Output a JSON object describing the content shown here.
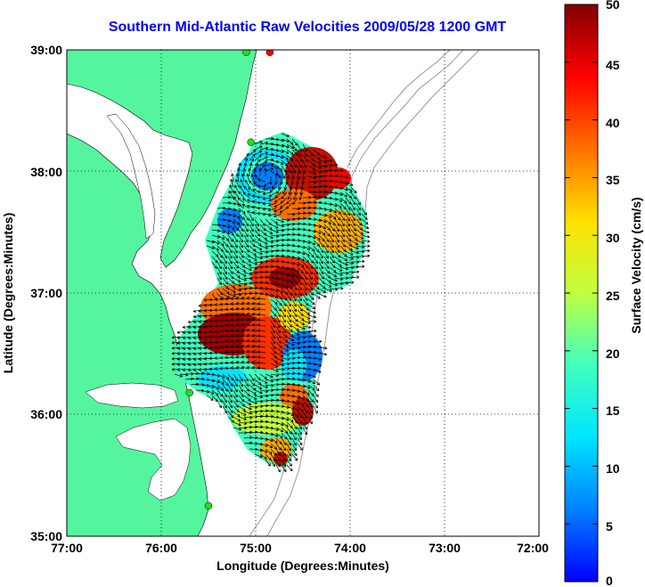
{
  "title": "Southern Mid-Atlantic Raw Velocities 2009/05/28 1200 GMT",
  "x_axis": {
    "label": "Longitude (Degrees:Minutes)",
    "ticks": [
      "77:00",
      "76:00",
      "75:00",
      "74:00",
      "73:00",
      "72:00"
    ]
  },
  "y_axis": {
    "label": "Latitude (Degrees:Minutes)",
    "ticks": [
      "39:00",
      "38:00",
      "37:00",
      "36:00",
      "35:00"
    ]
  },
  "colorbar": {
    "label": "Surface Velocity (cm/s)",
    "ticks": [
      "50",
      "45",
      "40",
      "35",
      "30",
      "25",
      "20",
      "15",
      "10",
      "5",
      "0"
    ],
    "min": 0,
    "max": 50,
    "colormap": "jet"
  },
  "map_extent": {
    "lon": [
      -77,
      -72
    ],
    "lat": [
      35,
      39
    ]
  },
  "colors": {
    "land": "#55f5a0",
    "water": "#ffffff",
    "bathymetry_contour": "#999999",
    "grid": "#000000",
    "title": "#0000ff"
  },
  "grid": "dotted",
  "vectors": "black",
  "station_markers": [
    {
      "lon": -74.85,
      "lat": 38.98,
      "color": "#ff0000"
    },
    {
      "lon": -75.1,
      "lat": 38.98,
      "color": "#22dd22"
    },
    {
      "lon": -75.05,
      "lat": 38.24,
      "color": "#22dd22"
    },
    {
      "lon": -75.7,
      "lat": 36.18,
      "color": "#22dd22"
    },
    {
      "lon": -75.5,
      "lat": 35.25,
      "color": "#22dd22"
    }
  ]
}
